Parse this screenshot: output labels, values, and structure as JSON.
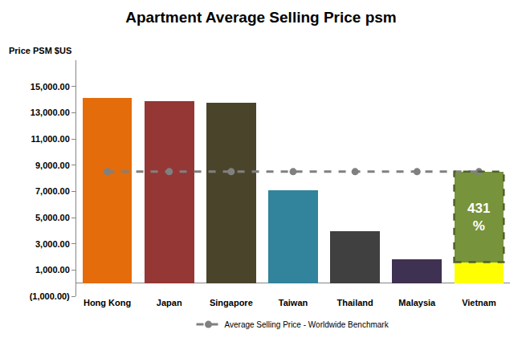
{
  "chart_data": {
    "type": "bar",
    "title": "Apartment Average Selling Price psm",
    "y_label": "Price PSM $US",
    "categories": [
      "Hong Kong",
      "Japan",
      "Singapore",
      "Taiwan",
      "Thailand",
      "Malaysia",
      "Vietnam"
    ],
    "stacked": true,
    "grid": false,
    "legend": "bottom",
    "series": [
      {
        "type": "bar",
        "colors": [
          "#e46c0a",
          "#953735",
          "#4a452a",
          "#31849b",
          "#404040",
          "#3f3151",
          "#ffff00"
        ],
        "values": [
          14100,
          13850,
          13750,
          7100,
          3950,
          1800,
          1600
        ]
      },
      {
        "type": "bar",
        "color": "#77933c",
        "line_style": "dashed",
        "values": [
          null,
          null,
          null,
          null,
          null,
          null,
          6900
        ]
      },
      {
        "type": "line",
        "name": "Average Selling Price - Worldwide Benchmark",
        "color": "#808080",
        "line_style": "dashed",
        "marker": "circle",
        "values": [
          8500,
          8500,
          8500,
          8500,
          8500,
          8500,
          8500
        ]
      }
    ],
    "annotations": [
      {
        "text": "431 %",
        "category": "Vietnam"
      }
    ],
    "ylim": [
      -1000,
      17000
    ],
    "yticks": [
      {
        "value": -1000,
        "label": "(1,000.00)"
      },
      {
        "value": 1000,
        "label": "1,000.00"
      },
      {
        "value": 3000,
        "label": "3,000.00"
      },
      {
        "value": 5000,
        "label": "5,000.00"
      },
      {
        "value": 7000,
        "label": "7,000.00"
      },
      {
        "value": 9000,
        "label": "9,000.00"
      },
      {
        "value": 11000,
        "label": "11,000.00"
      },
      {
        "value": 13000,
        "label": "13,000.00"
      },
      {
        "value": 15000,
        "label": "15,000.00"
      }
    ]
  }
}
